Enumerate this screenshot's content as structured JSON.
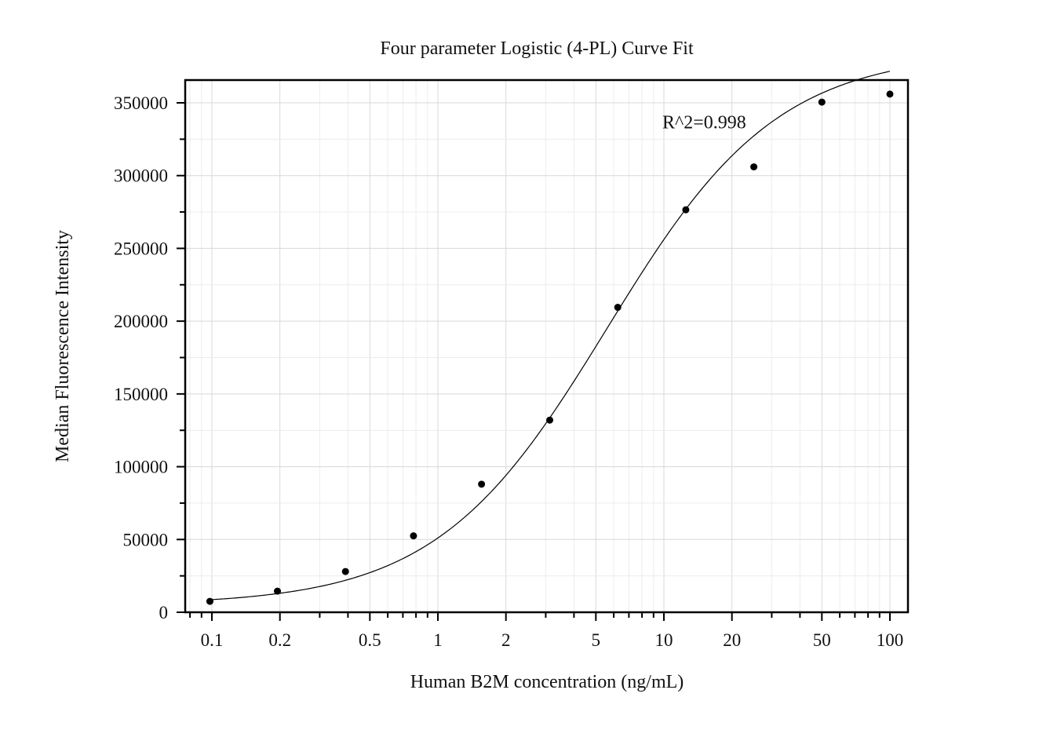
{
  "chart_data": {
    "type": "scatter",
    "title": "Four parameter Logistic (4-PL) Curve Fit",
    "xlabel": "Human B2M concentration (ng/mL)",
    "ylabel": "Median Fluorescence Intensity",
    "x_scale": "log",
    "xlim": [
      0.08,
      120
    ],
    "ylim": [
      0,
      350000
    ],
    "x_ticks": [
      0.1,
      0.2,
      0.5,
      1,
      2,
      5,
      10,
      20,
      50,
      100
    ],
    "x_tick_labels": [
      "0.1",
      "0.2",
      "0.5",
      "1",
      "2",
      "5",
      "10",
      "20",
      "50",
      "100"
    ],
    "y_ticks": [
      0,
      50000,
      100000,
      150000,
      200000,
      250000,
      300000,
      350000
    ],
    "y_tick_labels": [
      "0",
      "50000",
      "100000",
      "150000",
      "200000",
      "250000",
      "300000",
      "350000"
    ],
    "grid": true,
    "series": [
      {
        "kind": "points",
        "x": [
          0.098,
          0.195,
          0.39,
          0.78,
          1.56,
          3.125,
          6.25,
          12.5,
          25,
          50,
          100
        ],
        "y": [
          7500,
          14500,
          28000,
          52500,
          88000,
          132000,
          209500,
          276500,
          306000,
          350500,
          356000
        ],
        "color": "#000000"
      },
      {
        "kind": "fit",
        "model": "4PL",
        "params": {
          "bottom": 5000,
          "top": 385000,
          "ec50": 5.6,
          "hill": 1.15
        },
        "x_range": [
          0.098,
          100
        ],
        "color": "#000000"
      }
    ],
    "annotations": [
      {
        "text": "R^2=0.998",
        "x": 10,
        "y": 340000
      }
    ]
  }
}
